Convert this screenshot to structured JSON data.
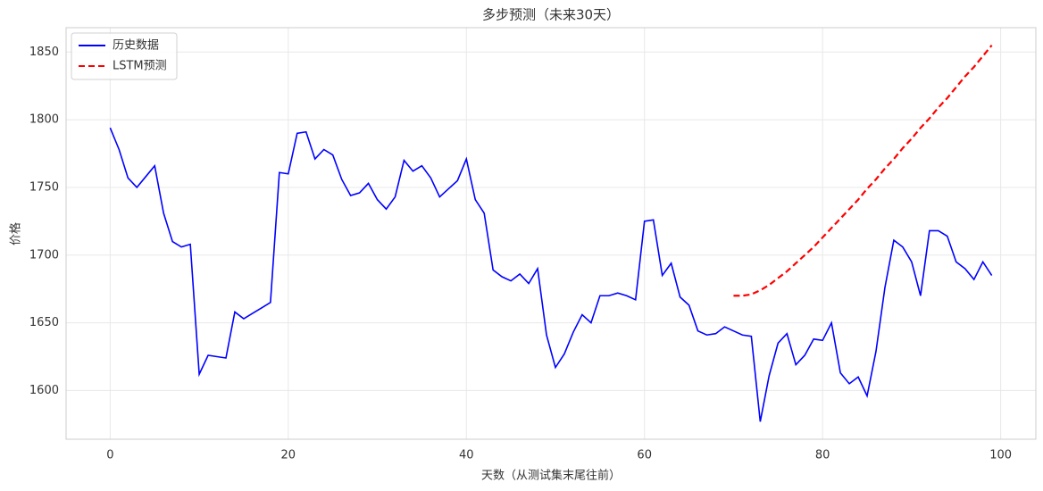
{
  "chart_data": {
    "type": "line",
    "title": "多步预测（未来30天）",
    "x_label": "天数（从测试集末尾往前）",
    "y_label": "价格",
    "xlim": [
      -4.95,
      103.95
    ],
    "ylim": [
      1564,
      1868
    ],
    "xticks": [
      0,
      20,
      40,
      60,
      80,
      100
    ],
    "yticks": [
      1600,
      1650,
      1700,
      1750,
      1800,
      1850
    ],
    "grid": true,
    "legend": "upper-left",
    "series": [
      {
        "name": "历史数据",
        "color": "#0000ff",
        "linestyle": "solid",
        "x": [
          0,
          1,
          2,
          3,
          4,
          5,
          6,
          7,
          8,
          9,
          10,
          11,
          12,
          13,
          14,
          15,
          16,
          17,
          18,
          19,
          20,
          21,
          22,
          23,
          24,
          25,
          26,
          27,
          28,
          29,
          30,
          31,
          32,
          33,
          34,
          35,
          36,
          37,
          38,
          39,
          40,
          41,
          42,
          43,
          44,
          45,
          46,
          47,
          48,
          49,
          50,
          51,
          52,
          53,
          54,
          55,
          56,
          57,
          58,
          59,
          60,
          61,
          62,
          63,
          64,
          65,
          66,
          67,
          68,
          69,
          70,
          71,
          72,
          73,
          74,
          75,
          76,
          77,
          78,
          79,
          80,
          81,
          82,
          83,
          84,
          85,
          86,
          87,
          88,
          89,
          90,
          91,
          92,
          93,
          94,
          95,
          96,
          97,
          98,
          99
        ],
        "values": [
          1794,
          1778,
          1757,
          1750,
          1758,
          1766,
          1731,
          1710,
          1706,
          1708,
          1612,
          1626,
          1625,
          1624,
          1658,
          1653,
          1657,
          1661,
          1665,
          1761,
          1760,
          1790,
          1791,
          1771,
          1778,
          1774,
          1756,
          1744,
          1746,
          1753,
          1741,
          1734,
          1743,
          1770,
          1762,
          1766,
          1757,
          1743,
          1749,
          1755,
          1771,
          1741,
          1731,
          1689,
          1684,
          1681,
          1686,
          1679,
          1690,
          1641,
          1617,
          1627,
          1643,
          1656,
          1650,
          1670,
          1670,
          1672,
          1670,
          1667,
          1725,
          1726,
          1685,
          1694,
          1669,
          1663,
          1644,
          1641,
          1642,
          1647,
          1644,
          1641,
          1640,
          1577,
          1611,
          1635,
          1642,
          1619,
          1626,
          1638,
          1637,
          1650,
          1613,
          1605,
          1610,
          1596,
          1629,
          1676,
          1711,
          1706,
          1695,
          1670,
          1718,
          1718,
          1714,
          1695,
          1690,
          1682,
          1695,
          1685
        ]
      },
      {
        "name": "LSTM预测",
        "color": "#ff0000",
        "linestyle": "dashed",
        "x": [
          70,
          71,
          72,
          73,
          74,
          75,
          76,
          77,
          78,
          79,
          80,
          81,
          82,
          83,
          84,
          85,
          86,
          87,
          88,
          89,
          90,
          91,
          92,
          93,
          94,
          95,
          96,
          97,
          98,
          99
        ],
        "values": [
          1670,
          1670,
          1671,
          1674,
          1678,
          1683,
          1688,
          1694,
          1700,
          1706,
          1713,
          1720,
          1727,
          1734,
          1741,
          1749,
          1756,
          1764,
          1771,
          1779,
          1786,
          1794,
          1801,
          1809,
          1816,
          1824,
          1832,
          1839,
          1847,
          1855
        ]
      }
    ]
  }
}
